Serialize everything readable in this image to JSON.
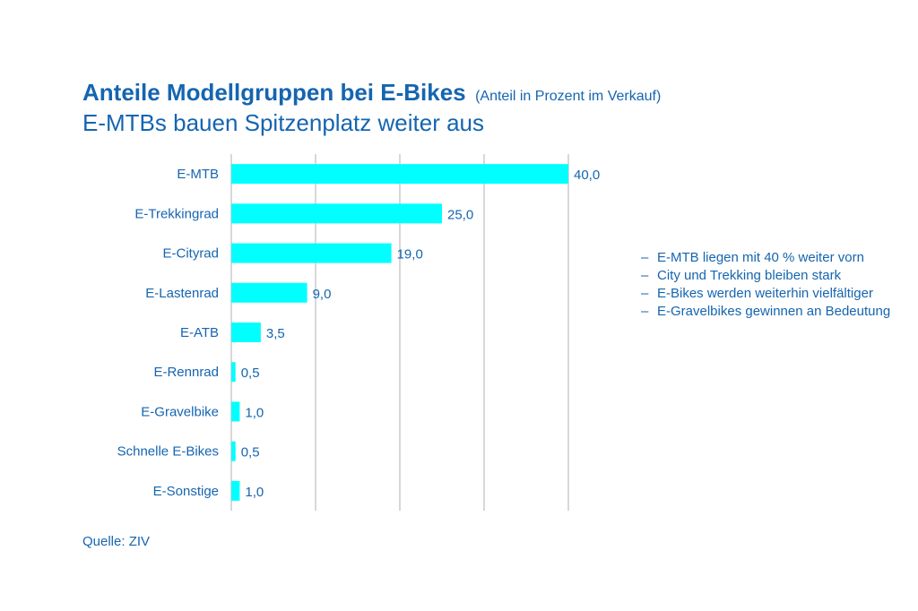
{
  "header": {
    "title": "Anteile Modellgruppen bei E-Bikes",
    "title_note": "(Anteil in Prozent im Verkauf)",
    "subtitle": "E-MTBs bauen Spitzenplatz weiter aus"
  },
  "chart_data": {
    "type": "bar",
    "orientation": "horizontal",
    "title": "Anteile Modellgruppen bei E-Bikes",
    "subtitle": "E-MTBs bauen Spitzenplatz weiter aus",
    "unit_note": "(Anteil in Prozent im Verkauf)",
    "categories": [
      "E-MTB",
      "E-Trekkingrad",
      "E-Cityrad",
      "E-Lastenrad",
      "E-ATB",
      "E-Rennrad",
      "E-Gravelbike",
      "Schnelle E-Bikes",
      "E-Sonstige"
    ],
    "values": [
      40.0,
      25.0,
      19.0,
      9.0,
      3.5,
      0.5,
      1.0,
      0.5,
      1.0
    ],
    "value_labels": [
      "40,0",
      "25,0",
      "19,0",
      "9,0",
      "3,5",
      "0,5",
      "1,0",
      "0,5",
      "1,0"
    ],
    "xlim": [
      0,
      40
    ],
    "gridlines": [
      10,
      20,
      30,
      40
    ],
    "grid": true,
    "xlabel": "",
    "ylabel": "",
    "bar_color": "#00ffff"
  },
  "notes": [
    "E-MTB liegen mit 40 % weiter vorn",
    "City und Trekking bleiben stark",
    "E-Bikes werden weiterhin vielfältiger",
    "E-Gravelbikes gewinnen an Bedeutung"
  ],
  "source": "Quelle: ZIV",
  "colors": {
    "text": "#1565b0",
    "bar": "#00ffff",
    "grid": "#b0b0b0"
  }
}
